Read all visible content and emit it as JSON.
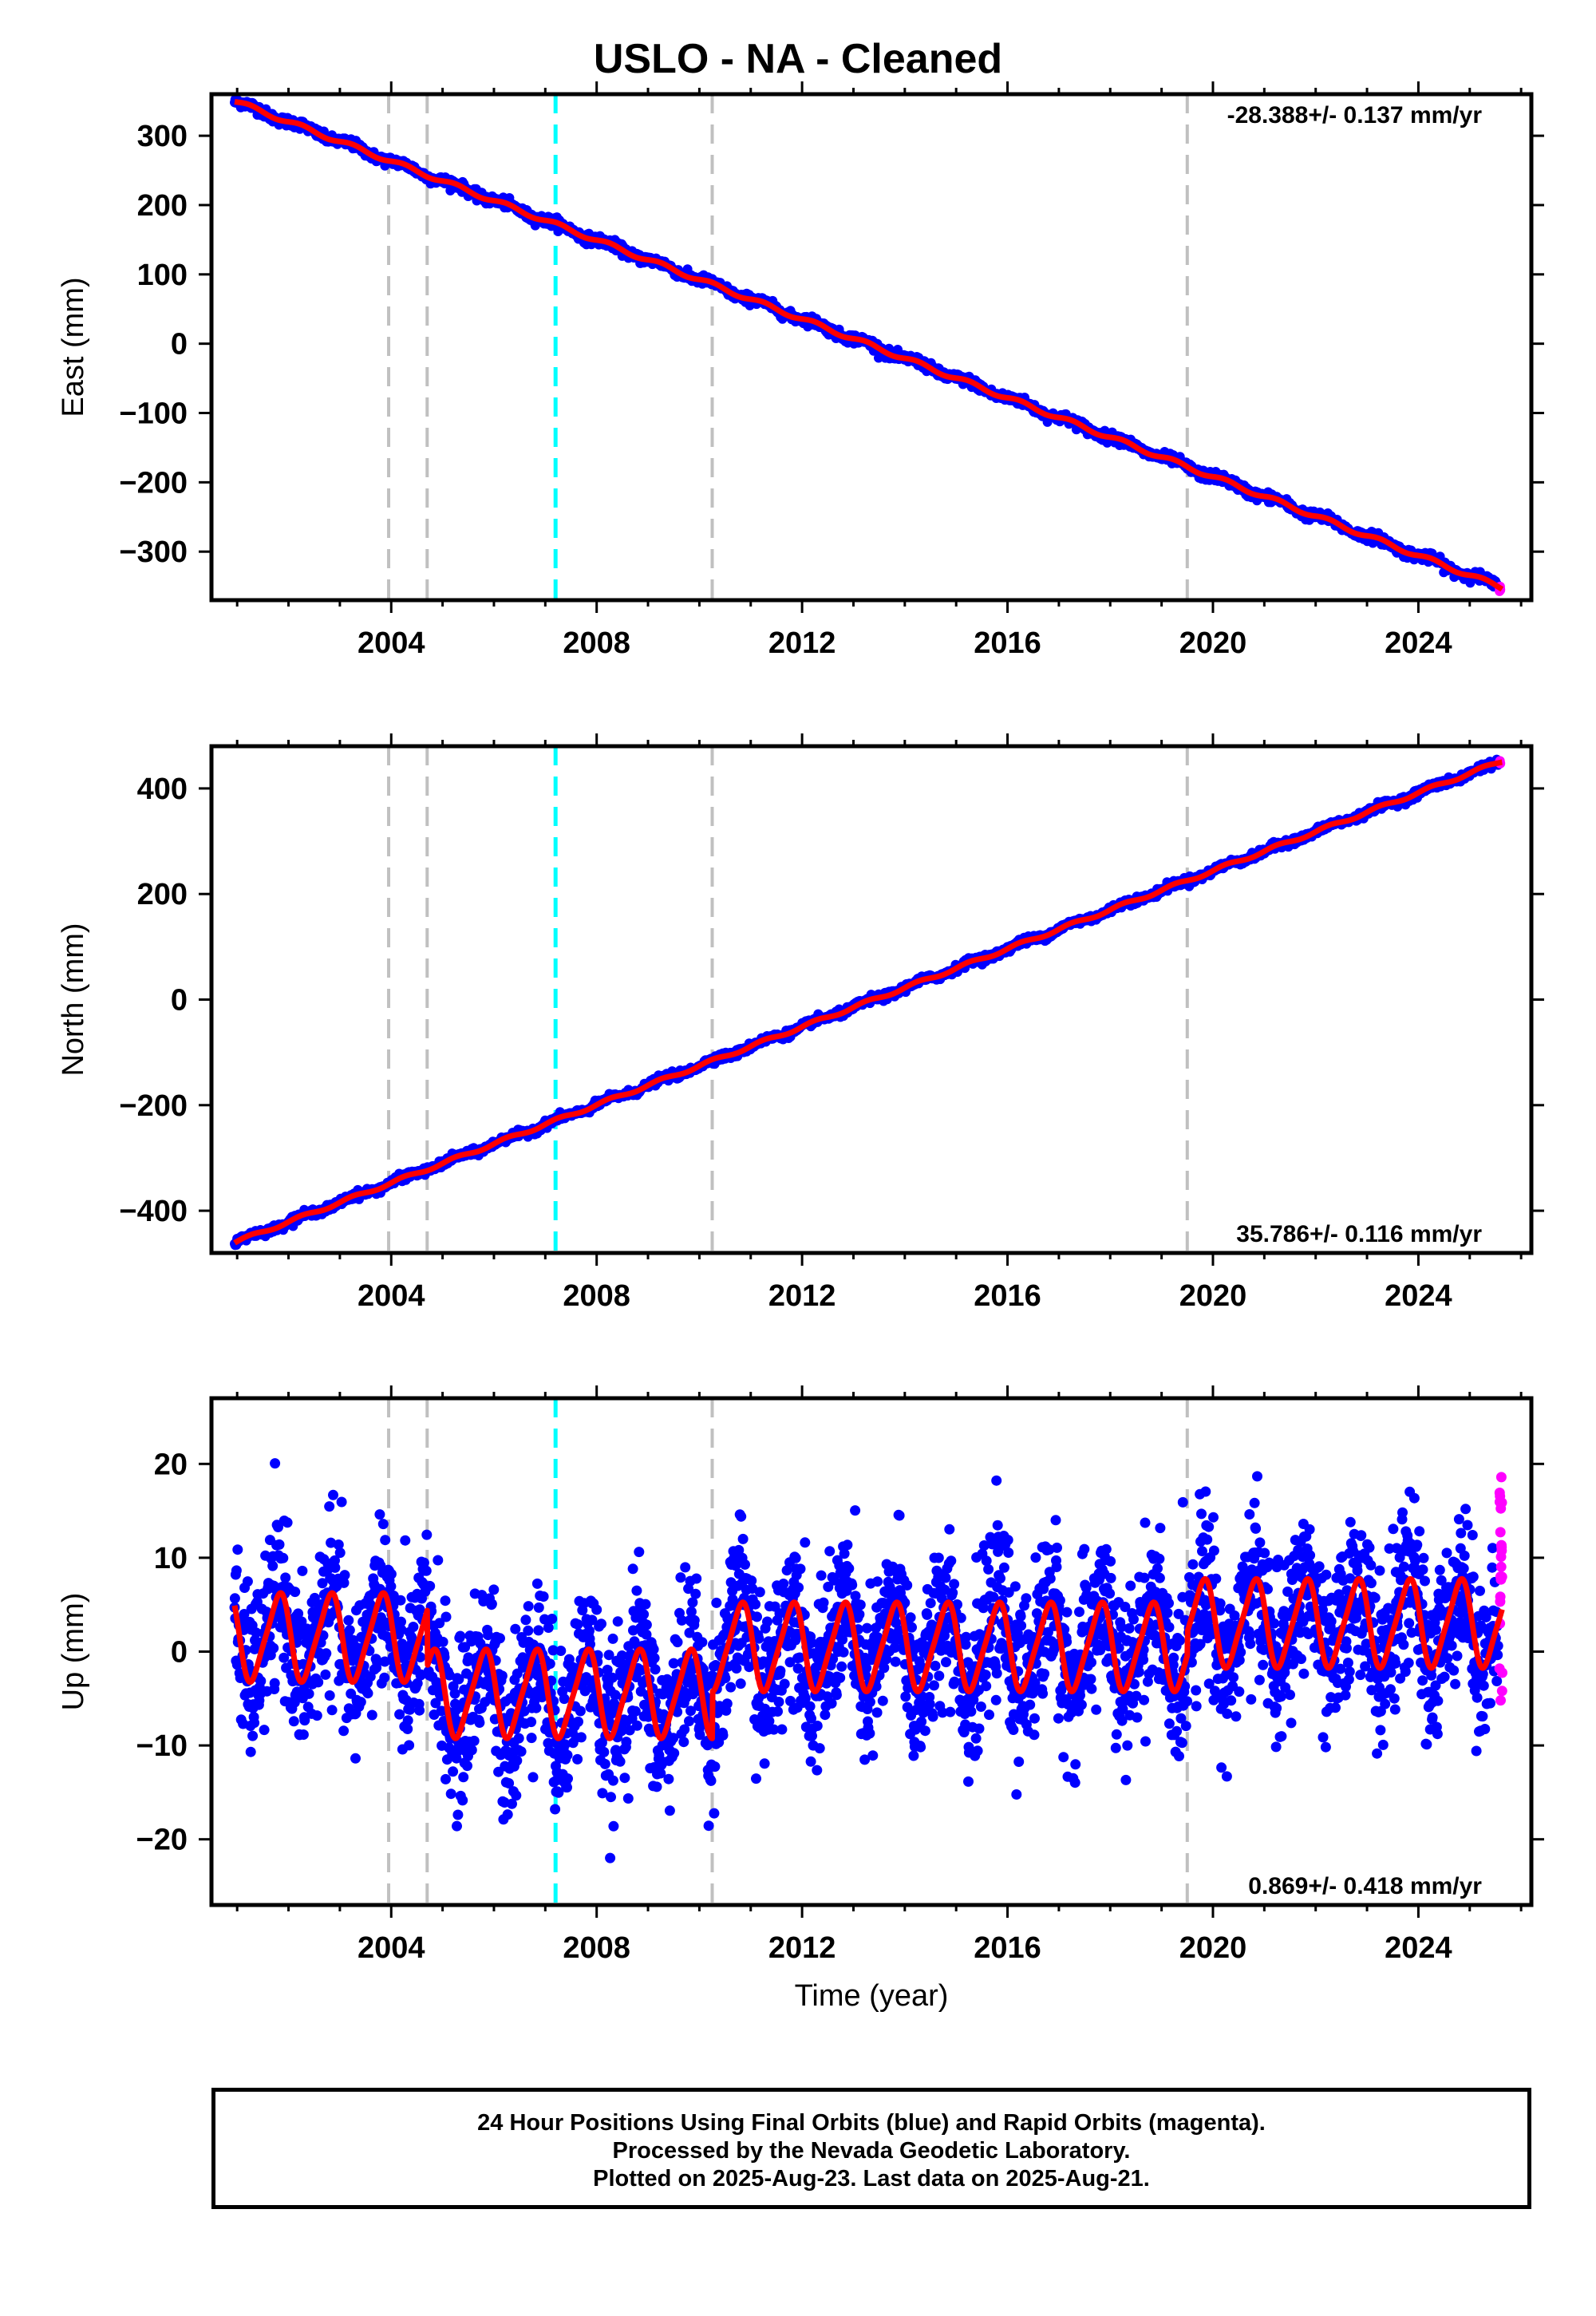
{
  "title": "USLO  - NA - Cleaned",
  "colors": {
    "final_orbits": "#0000ff",
    "rapid_orbits": "#ff00ff",
    "model_fit": "#ff0000",
    "event_dashed": "#c0c0c0",
    "highlight_dashed": "#00ffff"
  },
  "footer": {
    "line1": "24 Hour Positions Using Final Orbits (blue) and Rapid Orbits (magenta).",
    "line2": "Processed by the Nevada Geodetic Laboratory.",
    "line3": "Plotted on 2025-Aug-23. Last data on 2025-Aug-21."
  },
  "chart_data": [
    {
      "type": "scatter",
      "component": "east",
      "ylabel": "East (mm)",
      "xlabel": "",
      "xlim": [
        2000.5,
        2026.2
      ],
      "ylim": [
        -370,
        360
      ],
      "x_ticks": [
        2004,
        2008,
        2012,
        2016,
        2020,
        2024
      ],
      "y_ticks": [
        -300,
        -200,
        -100,
        0,
        100,
        200,
        300
      ],
      "y_tick_labels": [
        "−300",
        "−200",
        "−100",
        "0",
        "100",
        "200",
        "300"
      ],
      "rate_label": "-28.388+/- 0.137 mm/yr",
      "rate_label_position": "top-right",
      "trend_start": [
        2000.95,
        350
      ],
      "trend_end": [
        2025.63,
        -352
      ],
      "event_lines_gray": [
        2003.95,
        2004.7,
        2010.25,
        2019.5
      ],
      "event_lines_cyan": [
        2007.2
      ]
    },
    {
      "type": "scatter",
      "component": "north",
      "ylabel": "North (mm)",
      "xlabel": "",
      "xlim": [
        2000.5,
        2026.2
      ],
      "ylim": [
        -480,
        480
      ],
      "x_ticks": [
        2004,
        2008,
        2012,
        2016,
        2020,
        2024
      ],
      "y_ticks": [
        -400,
        -200,
        0,
        200,
        400
      ],
      "y_tick_labels": [
        "−400",
        "−200",
        "0",
        "200",
        "400"
      ],
      "rate_label": "35.786+/- 0.116 mm/yr",
      "rate_label_position": "bottom-right",
      "trend_start": [
        2000.95,
        -460
      ],
      "trend_end": [
        2025.63,
        452
      ],
      "event_lines_gray": [
        2003.95,
        2004.7,
        2010.25,
        2019.5
      ],
      "event_lines_cyan": [
        2007.2
      ]
    },
    {
      "type": "scatter",
      "component": "up",
      "ylabel": "Up (mm)",
      "xlabel": "Time (year)",
      "xlim": [
        2000.5,
        2026.2
      ],
      "ylim": [
        -27,
        27
      ],
      "x_ticks": [
        2004,
        2008,
        2012,
        2016,
        2020,
        2024
      ],
      "y_ticks": [
        -20,
        -10,
        0,
        10,
        20
      ],
      "y_tick_labels": [
        "−20",
        "−10",
        "0",
        "10",
        "20"
      ],
      "rate_label": "0.869+/- 0.418 mm/yr",
      "rate_label_position": "bottom-right",
      "seasonal_amplitude_mm": 4.5,
      "segment_offsets": [
        {
          "from": 2000.95,
          "to": 2004.7,
          "offset": 1.5
        },
        {
          "from": 2004.7,
          "to": 2010.25,
          "offset": -4.5
        },
        {
          "from": 2010.25,
          "to": 2019.5,
          "offset": 0.5
        },
        {
          "from": 2019.5,
          "to": 2025.63,
          "offset": 3.0
        }
      ],
      "event_lines_gray": [
        2003.95,
        2004.7,
        2010.25,
        2019.5
      ],
      "event_lines_cyan": [
        2007.2
      ]
    }
  ]
}
